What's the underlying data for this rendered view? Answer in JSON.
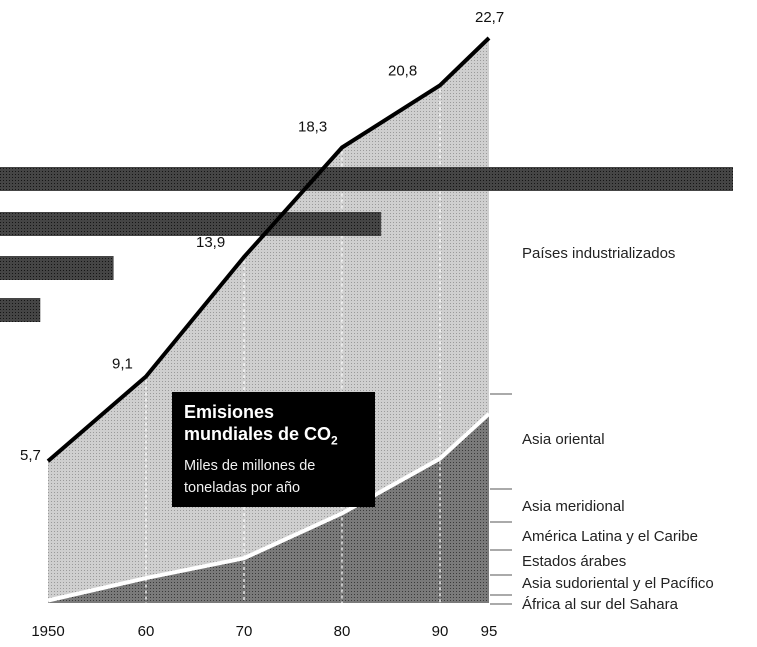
{
  "colors": {
    "line": "#000000",
    "region_line": "#ffffff",
    "upper_area": "#c8c8c8",
    "lower_area": "#6e6e6e",
    "bars": "#3c3c3c",
    "title_bg": "#000000",
    "title_fg": "#ffffff"
  },
  "title_box": {
    "title_line1": "Emisiones",
    "title_line2": "mundiales de CO",
    "title_sub": "2",
    "subtitle_line1": "Miles de millones de",
    "subtitle_line2": "toneladas por año"
  },
  "chart_data": {
    "type": "area",
    "title": "Emisiones mundiales de CO2",
    "subtitle": "Miles de millones de toneladas por año",
    "x": [
      1950,
      1960,
      1970,
      1980,
      1990,
      1995
    ],
    "x_tick_labels": [
      "1950",
      "60",
      "70",
      "80",
      "90",
      "95"
    ],
    "series": [
      {
        "values": [
          5.7,
          9.1,
          13.9,
          18.3,
          20.8,
          22.7
        ],
        "point_labels": [
          "5,7",
          "9,1",
          "13,9",
          "18,3",
          "20,8",
          "22,7"
        ]
      }
    ],
    "lower_band_values": [
      0.1,
      1.0,
      1.8,
      3.6,
      5.8,
      7.6
    ],
    "ylim": [
      0,
      22.7
    ],
    "regions": [
      "Países industrializados",
      "Asia oriental",
      "Asia meridional",
      "América Latina y el Caribe",
      "Estados árabes",
      "Asia sudoriental y el Pacífico",
      "África al sur del Sahara"
    ],
    "bars": {
      "values": [
        1.0,
        0.52,
        0.155,
        0.055
      ]
    },
    "grid": true
  }
}
